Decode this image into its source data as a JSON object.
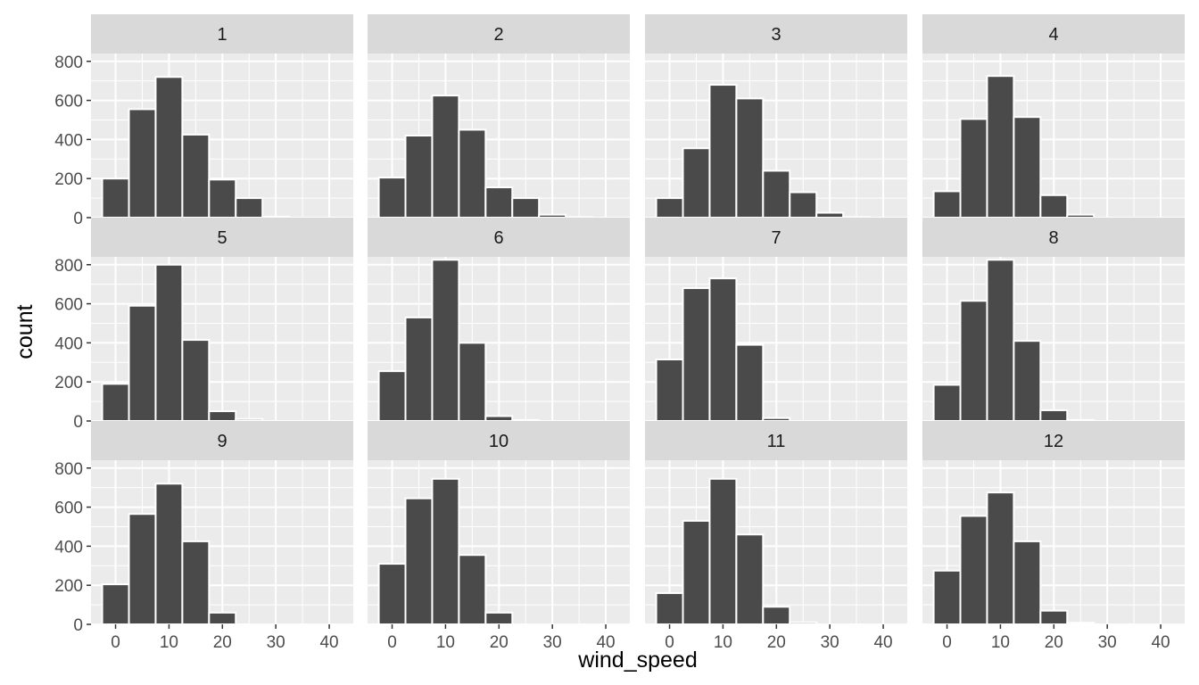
{
  "chart_data": {
    "type": "bar",
    "subtype": "histogram-faceted",
    "xlabel": "wind_speed",
    "ylabel": "count",
    "xlim": [
      -4.6,
      44.5
    ],
    "ylim": [
      0,
      840
    ],
    "x_ticks": [
      0,
      10,
      20,
      30,
      40
    ],
    "y_ticks": [
      0,
      200,
      400,
      600,
      800
    ],
    "bin_centers": [
      0,
      5,
      10,
      15,
      20,
      25,
      30,
      35,
      40
    ],
    "bin_width": 5,
    "grid": true,
    "facets": [
      {
        "label": "1",
        "values": [
          200,
          555,
          720,
          425,
          195,
          100,
          5,
          0,
          0
        ]
      },
      {
        "label": "2",
        "values": [
          205,
          420,
          625,
          450,
          155,
          100,
          15,
          3,
          0
        ]
      },
      {
        "label": "3",
        "values": [
          100,
          355,
          680,
          610,
          240,
          130,
          25,
          3,
          0
        ]
      },
      {
        "label": "4",
        "values": [
          135,
          505,
          725,
          515,
          115,
          15,
          0,
          0,
          0
        ]
      },
      {
        "label": "5",
        "values": [
          190,
          590,
          800,
          415,
          50,
          10,
          0,
          0,
          0
        ]
      },
      {
        "label": "6",
        "values": [
          255,
          530,
          825,
          400,
          25,
          5,
          0,
          0,
          0
        ]
      },
      {
        "label": "7",
        "values": [
          315,
          680,
          730,
          390,
          15,
          0,
          0,
          0,
          0
        ]
      },
      {
        "label": "8",
        "values": [
          185,
          615,
          825,
          410,
          55,
          5,
          0,
          0,
          0
        ]
      },
      {
        "label": "9",
        "values": [
          205,
          565,
          720,
          425,
          60,
          0,
          0,
          0,
          0
        ]
      },
      {
        "label": "10",
        "values": [
          310,
          645,
          745,
          355,
          60,
          0,
          0,
          0,
          0
        ]
      },
      {
        "label": "11",
        "values": [
          160,
          530,
          745,
          460,
          90,
          10,
          0,
          0,
          0
        ]
      },
      {
        "label": "12",
        "values": [
          275,
          555,
          675,
          425,
          70,
          8,
          0,
          0,
          0
        ]
      }
    ]
  }
}
